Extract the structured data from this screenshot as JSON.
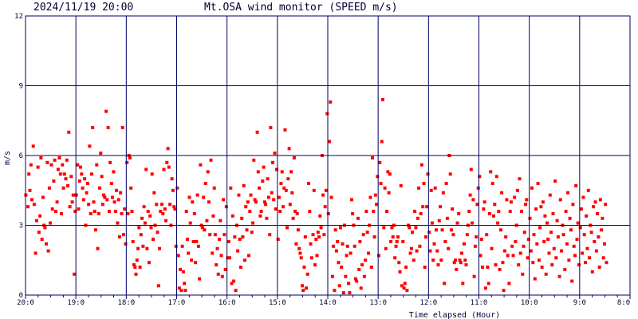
{
  "header": {
    "timestamp": "2024/11/19 20:00",
    "title": "Mt.OSA wind monitor (SPEED m/s)"
  },
  "chart_data": {
    "type": "scatter",
    "title": "Mt.OSA wind monitor (SPEED m/s)",
    "xlabel": "Time elapsed (Hour)",
    "ylabel": "m/s",
    "x_tick_labels": [
      "20:0",
      "19:0",
      "18:0",
      "17:0",
      "16:0",
      "15:0",
      "14:0",
      "13:0",
      "12:0",
      "11:0",
      "10:0",
      "9:0",
      "8:0"
    ],
    "y_ticks": [
      0,
      3,
      6,
      9,
      12
    ],
    "ylim": [
      0,
      12
    ],
    "xlim_hours_elapsed": [
      0,
      12
    ],
    "grid": true,
    "series": [
      {
        "color": "#ff0000",
        "x_hours_elapsed": [
          0.007,
          0.047,
          0.067,
          0.087,
          0.107,
          0.127,
          0.153,
          0.173,
          0.2,
          0.22,
          0.247,
          0.267,
          0.287,
          0.307,
          0.327,
          0.347,
          0.367,
          0.387,
          0.413,
          0.433,
          0.453,
          0.473,
          0.493,
          0.513,
          0.533,
          0.56,
          0.58,
          0.6,
          0.627,
          0.647,
          0.673,
          0.693,
          0.713,
          0.733,
          0.753,
          0.773,
          0.8,
          0.82,
          0.84,
          0.86,
          0.88,
          0.907,
          0.927,
          0.947,
          0.967,
          0.987,
          1.007,
          1.033,
          1.053,
          1.073,
          1.093,
          1.113,
          1.133,
          1.153,
          1.173,
          1.193,
          1.213,
          1.233,
          1.253,
          1.273,
          1.293,
          1.313,
          1.333,
          1.353,
          1.373,
          1.393,
          1.413,
          1.433,
          1.453,
          1.473,
          1.493,
          1.513,
          1.533,
          1.553,
          1.573,
          1.6,
          1.62,
          1.64,
          1.66,
          1.68,
          1.707,
          1.727,
          1.747,
          1.767,
          1.787,
          1.807,
          1.827,
          1.847,
          1.867,
          1.887,
          1.907,
          1.927,
          1.947,
          1.967,
          1.987,
          2.013,
          2.033,
          2.053,
          2.073,
          2.093,
          2.113,
          2.133,
          2.153,
          2.173,
          2.193,
          2.213,
          2.233,
          2.253,
          2.273,
          2.293,
          2.313,
          2.333,
          2.353,
          2.373,
          2.393,
          2.413,
          2.433,
          2.453,
          2.473,
          2.493,
          2.513,
          2.533,
          2.553,
          2.573,
          2.6,
          2.62,
          2.64,
          2.66,
          2.68,
          2.707,
          2.727,
          2.747,
          2.767,
          2.787,
          2.807,
          2.827,
          2.847,
          2.867,
          2.887,
          2.907,
          2.927,
          2.947,
          2.967,
          2.987,
          3.013,
          3.033,
          3.053,
          3.073,
          3.093,
          3.113,
          3.133,
          3.153,
          3.173,
          3.193,
          3.213,
          3.233,
          3.253,
          3.273,
          3.293,
          3.313,
          3.333,
          3.353,
          3.373,
          3.393,
          3.413,
          3.433,
          3.453,
          3.473,
          3.493,
          3.513,
          3.533,
          3.553,
          3.573,
          3.6,
          3.62,
          3.64,
          3.66,
          3.68,
          3.707,
          3.727,
          3.747,
          3.767,
          3.787,
          3.807,
          3.827,
          3.847,
          3.867,
          3.887,
          3.907,
          3.927,
          3.947,
          3.967,
          3.987,
          4.013,
          4.033,
          4.053,
          4.073,
          4.093,
          4.113,
          4.133,
          4.153,
          4.173,
          4.193,
          4.213,
          4.233,
          4.253,
          4.273,
          4.293,
          4.313,
          4.333,
          4.353,
          4.373,
          4.393,
          4.413,
          4.433,
          4.453,
          4.473,
          4.493,
          4.513,
          4.533,
          4.553,
          4.573,
          4.6,
          4.62,
          4.64,
          4.66,
          4.68,
          4.707,
          4.727,
          4.747,
          4.767,
          4.787,
          4.807,
          4.827,
          4.847,
          4.867,
          4.887,
          4.907,
          4.927,
          4.947,
          4.967,
          4.987,
          5.013,
          5.033,
          5.053,
          5.073,
          5.093,
          5.113,
          5.133,
          5.153,
          5.173,
          5.193,
          5.213,
          5.233,
          5.253,
          5.273,
          5.293,
          5.313,
          5.333,
          5.353,
          5.373,
          5.393,
          5.413,
          5.433,
          5.453,
          5.473,
          5.493,
          5.513,
          5.533,
          5.553,
          5.573,
          5.6,
          5.62,
          5.64,
          5.66,
          5.68,
          5.707,
          5.727,
          5.747,
          5.767,
          5.787,
          5.807,
          5.827,
          5.847,
          5.867,
          5.887,
          5.907,
          5.927,
          5.947,
          5.967,
          5.987,
          6.013,
          6.033,
          6.053,
          6.073,
          6.093,
          6.113,
          6.133,
          6.153,
          6.173,
          6.193,
          6.213,
          6.233,
          6.253,
          6.273,
          6.293,
          6.313,
          6.333,
          6.353,
          6.373,
          6.393,
          6.413,
          6.433,
          6.453,
          6.473,
          6.493,
          6.513,
          6.533,
          6.553,
          6.573,
          6.6,
          6.62,
          6.64,
          6.66,
          6.68,
          6.707,
          6.727,
          6.747,
          6.767,
          6.787,
          6.807,
          6.827,
          6.847,
          6.867,
          6.887,
          6.907,
          6.927,
          6.947,
          6.967,
          6.987,
          7.013,
          7.033,
          7.053,
          7.073,
          7.093,
          7.113,
          7.133,
          7.153,
          7.173,
          7.193,
          7.213,
          7.233,
          7.253,
          7.273,
          7.293,
          7.313,
          7.333,
          7.353,
          7.373,
          7.393,
          7.413,
          7.433,
          7.453,
          7.473,
          7.493,
          7.513,
          7.533,
          7.553,
          7.573,
          7.6,
          7.62,
          7.64,
          7.66,
          7.68,
          7.707,
          7.727,
          7.747,
          7.767,
          7.787,
          7.807,
          7.827,
          7.847,
          7.867,
          7.887,
          7.907,
          7.927,
          7.947,
          7.967,
          7.987,
          8.013,
          8.033,
          8.053,
          8.073,
          8.093,
          8.113,
          8.133,
          8.153,
          8.173,
          8.193,
          8.213,
          8.233,
          8.253,
          8.273,
          8.293,
          8.313,
          8.333,
          8.353,
          8.373,
          8.393,
          8.413,
          8.433,
          8.453,
          8.473,
          8.493,
          8.513,
          8.533,
          8.553,
          8.573,
          8.6,
          8.62,
          8.64,
          8.66,
          8.68,
          8.707,
          8.727,
          8.747,
          8.767,
          8.787,
          8.807,
          8.827,
          8.847,
          8.867,
          8.887,
          8.907,
          8.927,
          8.947,
          8.967,
          8.987,
          9.013,
          9.033,
          9.053,
          9.073,
          9.093,
          9.113,
          9.133,
          9.153,
          9.173,
          9.193,
          9.213,
          9.233,
          9.253,
          9.273,
          9.293,
          9.313,
          9.333,
          9.353,
          9.373,
          9.393,
          9.413,
          9.433,
          9.453,
          9.473,
          9.493,
          9.513,
          9.533,
          9.553,
          9.573,
          9.6,
          9.62,
          9.64,
          9.66,
          9.68,
          9.707,
          9.727,
          9.747,
          9.767,
          9.787,
          9.807,
          9.827,
          9.847,
          9.867,
          9.887,
          9.907,
          9.927,
          9.947,
          9.967,
          9.987,
          10.013,
          10.033,
          10.053,
          10.073,
          10.093,
          10.113,
          10.133,
          10.153,
          10.173,
          10.193,
          10.213,
          10.233,
          10.253,
          10.273,
          10.293,
          10.313,
          10.333,
          10.353,
          10.373,
          10.393,
          10.413,
          10.433,
          10.453,
          10.473,
          10.493,
          10.513,
          10.533,
          10.553,
          10.573,
          10.6,
          10.62,
          10.64,
          10.66,
          10.68,
          10.707,
          10.727,
          10.747,
          10.767,
          10.787,
          10.807,
          10.827,
          10.847,
          10.867,
          10.887,
          10.907,
          10.927,
          10.947,
          10.967,
          10.987,
          11.013,
          11.033,
          11.053,
          11.073,
          11.093,
          11.113,
          11.133,
          11.153,
          11.173,
          11.193,
          11.213,
          11.233,
          11.253,
          11.273,
          11.293,
          11.313,
          11.333,
          11.353,
          11.373,
          11.393,
          11.413,
          11.433,
          11.453,
          11.473,
          11.493,
          11.513,
          11.533,
          11.553,
          11.573,
          11.6,
          11.62,
          11.64,
          11.66,
          11.68,
          11.707,
          11.727,
          11.747,
          11.767,
          11.787,
          11.807,
          11.827,
          11.847,
          11.867,
          11.887,
          11.907,
          11.927,
          11.947,
          11.967,
          11.987
        ],
        "y": [
          4.3,
          3.8,
          5.2,
          4.5,
          5.6,
          4.1,
          6.4,
          3.9,
          1.8,
          3.2,
          5.5,
          2.7,
          3.4,
          5.9,
          2.4,
          4.2,
          3.0,
          2.9,
          2.2,
          5.7,
          1.9,
          4.6,
          3.1,
          5.6,
          3.7,
          4.9,
          5.8,
          3.6,
          4.0,
          5.4,
          5.9,
          5.2,
          3.5,
          5.6,
          4.6,
          5.2,
          5.0,
          5.8,
          4.7,
          7.0,
          3.8,
          5.1,
          4.0,
          4.3,
          0.9,
          3.6,
          4.3,
          5.6,
          3.7,
          4.9,
          5.5,
          5.2,
          4.6,
          4.1,
          5.0,
          3.0,
          4.4,
          4.8,
          3.9,
          6.4,
          3.5,
          5.2,
          7.2,
          4.0,
          3.6,
          2.8,
          5.6,
          2.0,
          3.5,
          4.6,
          6.1,
          5.1,
          3.9,
          4.3,
          4.2,
          7.9,
          4.1,
          7.2,
          3.6,
          5.7,
          4.8,
          4.2,
          5.3,
          4.0,
          3.6,
          4.5,
          3.1,
          4.1,
          2.5,
          4.4,
          3.5,
          7.2,
          2.6,
          3.7,
          2.2,
          5.7,
          3.5,
          6.0,
          5.9,
          4.6,
          3.6,
          2.3,
          1.3,
          1.2,
          0.9,
          1.5,
          2.0,
          2.9,
          1.2,
          2.6,
          3.3,
          2.1,
          3.8,
          3.1,
          5.4,
          2.0,
          3.6,
          1.4,
          3.4,
          2.9,
          5.2,
          2.4,
          4.4,
          3.0,
          3.9,
          2.7,
          0.4,
          2.0,
          3.6,
          3.9,
          3.5,
          5.4,
          3.7,
          3.2,
          5.7,
          6.3,
          5.5,
          3.9,
          3.0,
          5.0,
          4.5,
          3.8,
          3.7,
          2.1,
          4.6,
          1.7,
          0.3,
          1.1,
          0.2,
          2.1,
          1.0,
          0.5,
          0.2,
          3.6,
          2.4,
          1.8,
          4.2,
          3.1,
          1.5,
          4.0,
          2.3,
          3.5,
          1.4,
          2.3,
          4.3,
          2.1,
          0.7,
          5.6,
          3.0,
          2.9,
          4.2,
          2.8,
          4.8,
          3.2,
          5.3,
          4.0,
          2.6,
          5.8,
          1.8,
          3.4,
          4.6,
          2.6,
          1.3,
          2.0,
          0.9,
          2.4,
          3.2,
          1.7,
          0.8,
          4.1,
          2.6,
          1.1,
          3.8,
          1.6,
          2.3,
          1.6,
          4.6,
          0.5,
          3.4,
          0.6,
          2.5,
          0.2,
          3.0,
          1.9,
          4.3,
          2.4,
          1.2,
          3.3,
          2.5,
          4.7,
          1.5,
          3.8,
          2.8,
          4.0,
          1.7,
          3.6,
          4.3,
          2.7,
          3.1,
          5.8,
          4.1,
          4.0,
          7.0,
          5.3,
          4.6,
          3.4,
          3.6,
          4.9,
          5.5,
          4.0,
          3.9,
          3.3,
          5.0,
          4.2,
          2.6,
          7.2,
          4.4,
          5.7,
          4.1,
          6.1,
          3.7,
          5.4,
          2.4,
          4.2,
          3.6,
          4.8,
          5.3,
          3.8,
          4.6,
          7.1,
          4.5,
          2.9,
          5.0,
          6.3,
          3.9,
          5.3,
          4.4,
          3.3,
          5.9,
          3.6,
          2.2,
          3.5,
          2.8,
          2.0,
          1.8,
          1.6,
          0.4,
          0.2,
          1.2,
          2.5,
          0.3,
          0.9,
          4.8,
          3.6,
          2.2,
          1.6,
          2.6,
          4.5,
          1.3,
          2.4,
          1.7,
          2.7,
          2.5,
          3.4,
          2.9,
          6.0,
          4.3,
          2.6,
          3.8,
          4.5,
          7.8,
          3.5,
          6.6,
          8.3,
          4.2,
          0.8,
          2.1,
          0.2,
          2.8,
          1.9,
          2.3,
          1.4,
          0.4,
          2.9,
          1.2,
          2.2,
          0.1,
          3.0,
          0.8,
          1.7,
          2.1,
          0.5,
          0.1,
          1.8,
          4.1,
          3.5,
          3.0,
          2.1,
          0.7,
          0.6,
          3.3,
          1.1,
          2.3,
          0.3,
          1.3,
          2.6,
          0.8,
          1.5,
          3.6,
          2.7,
          1.8,
          3.0,
          4.2,
          1.2,
          5.9,
          3.6,
          2.5,
          4.3,
          3.9,
          5.1,
          1.7,
          5.7,
          4.8,
          6.6,
          8.4,
          2.9,
          4.6,
          2.0,
          3.6,
          5.3,
          4.4,
          5.2,
          2.3,
          2.9,
          2.5,
          3.0,
          1.6,
          2.1,
          2.3,
          2.5,
          1.4,
          1.0,
          4.7,
          0.4,
          2.3,
          0.3,
          0.5,
          1.2,
          0.2,
          3.0,
          2.9,
          1.8,
          2.0,
          2.7,
          1.5,
          3.6,
          2.9,
          1.9,
          3.3,
          4.6,
          2.1,
          3.5,
          5.6,
          3.8,
          4.8,
          1.2,
          2.5,
          3.8,
          5.2,
          2.7,
          1.9,
          4.5,
          3.1,
          1.5,
          2.2,
          4.6,
          2.8,
          1.9,
          1.3,
          3.2,
          3.8,
          1.5,
          2.8,
          4.4,
          0.5,
          2.3,
          4.8,
          3.3,
          2.0,
          6.0,
          5.2,
          2.8,
          3.7,
          2.6,
          1.4,
          1.5,
          1.1,
          3.1,
          3.5,
          1.5,
          1.4,
          1.8,
          0.5,
          2.2,
          1.5,
          1.3,
          2.6,
          3.0,
          3.6,
          4.3,
          5.4,
          3.1,
          4.1,
          0.8,
          2.1,
          2.5,
          3.9,
          4.6,
          5.1,
          1.7,
          2.4,
          1.2,
          3.7,
          4.0,
          0.3,
          2.6,
          1.2,
          0.5,
          3.5,
          5.3,
          2.0,
          4.8,
          3.4,
          3.9,
          1.3,
          5.1,
          3.1,
          3.6,
          1.1,
          2.8,
          4.4,
          1.4,
          0.2,
          1.9,
          2.5,
          4.1,
          1.7,
          0.5,
          3.6,
          4.0,
          2.1,
          1.7,
          4.2,
          2.3,
          3.0,
          4.5,
          1.3,
          5.0,
          1.8,
          3.6,
          0.9,
          2.1,
          2.7,
          3.9,
          4.1,
          1.6,
          2.4,
          3.3,
          1.9,
          4.6,
          1.4,
          2.6,
          0.7,
          3.7,
          2.2,
          4.8,
          1.5,
          2.9,
          3.8,
          1.2,
          4.0,
          2.3,
          3.4,
          0.9,
          3.1,
          2.4,
          1.8,
          4.3,
          2.7,
          1.3,
          3.5,
          2.0,
          4.9,
          1.6,
          3.2,
          2.5,
          0.8,
          4.1,
          1.9,
          3.0,
          2.6,
          1.1,
          3.6,
          2.2,
          4.4,
          1.5,
          3.3,
          2.8,
          0.6,
          3.9,
          2.1,
          1.7,
          4.7,
          2.4,
          3.1,
          1.3,
          2.9,
          3.7,
          1.8,
          4.2,
          2.6,
          1.4,
          3.4,
          2.0,
          4.5,
          1.6,
          3.0,
          2.7,
          1.0,
          3.8,
          2.3,
          4.0,
          1.9,
          3.5,
          2.5,
          1.2,
          4.1,
          2.8,
          3.3,
          1.6,
          2.2,
          3.9,
          1.4
        ]
      }
    ]
  }
}
